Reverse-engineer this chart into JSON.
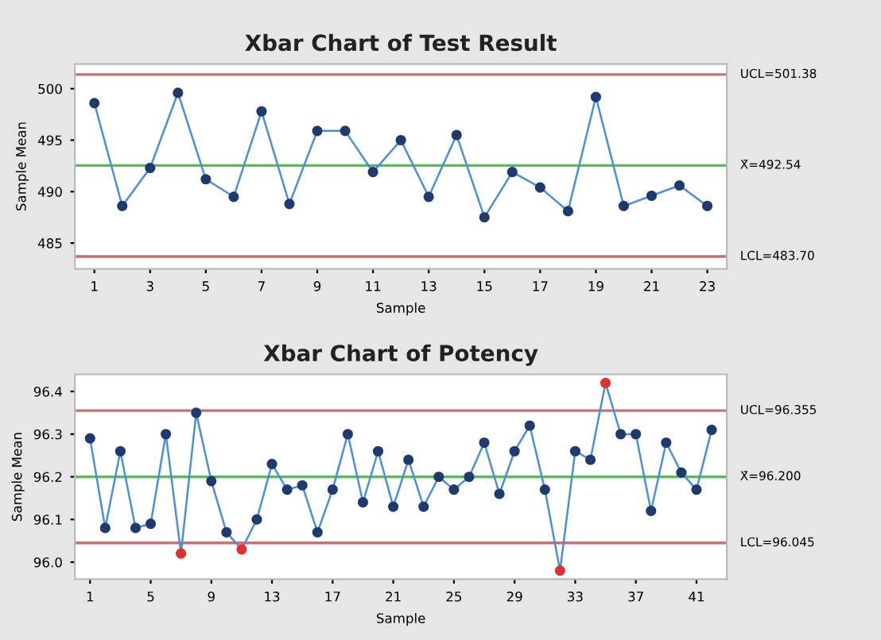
{
  "chart_data": [
    {
      "type": "line",
      "title": "Xbar Chart of Test Result",
      "xlabel": "Sample",
      "ylabel": "Sample Mean",
      "x": [
        1,
        2,
        3,
        4,
        5,
        6,
        7,
        8,
        9,
        10,
        11,
        12,
        13,
        14,
        15,
        16,
        17,
        18,
        19,
        20,
        21,
        22,
        23
      ],
      "series": [
        {
          "color": "#4a90d9",
          "colors": [
            "#1f3a6e",
            "#1f3a6e",
            "#1f3a6e",
            "#1f3a6e",
            "#1f3a6e",
            "#1f3a6e",
            "#1f3a6e",
            "#1f3a6e",
            "#1f3a6e",
            "#1f3a6e",
            "#1f3a6e",
            "#1f3a6e",
            "#1f3a6e",
            "#1f3a6e",
            "#1f3a6e",
            "#1f3a6e",
            "#1f3a6e",
            "#1f3a6e",
            "#1f3a6e",
            "#1f3a6e",
            "#1f3a6e",
            "#1f3a6e",
            "#1f3a6e"
          ],
          "values": [
            498.6,
            488.6,
            492.3,
            499.6,
            491.2,
            489.5,
            497.8,
            488.8,
            495.9,
            495.9,
            491.9,
            495.0,
            489.5,
            495.5,
            487.5,
            491.9,
            490.4,
            488.1,
            499.2,
            488.6,
            489.6,
            490.6,
            488.6
          ]
        }
      ],
      "marker": "circle",
      "line_style": "solid",
      "xlim": [
        0.3,
        23.7
      ],
      "xticks": [
        1,
        3,
        5,
        7,
        9,
        11,
        13,
        15,
        17,
        19,
        21,
        23
      ],
      "ylim": [
        482.5,
        502.4
      ],
      "yticks": [
        485,
        490,
        495,
        500
      ],
      "ref_lines": [
        {
          "axis": "y",
          "value": 501.38,
          "label": "UCL=501.38",
          "color": "#c87070"
        },
        {
          "axis": "y",
          "value": 492.54,
          "label": "X̄=492.54",
          "color": "#5cb85c"
        },
        {
          "axis": "y",
          "value": 483.7,
          "label": "LCL=483.70",
          "color": "#c87070"
        }
      ],
      "grid": false,
      "legend": false
    },
    {
      "type": "line",
      "title": "Xbar Chart of Potency",
      "xlabel": "Sample",
      "ylabel": "Sample Mean",
      "x": [
        1,
        2,
        3,
        4,
        5,
        6,
        7,
        8,
        9,
        10,
        11,
        12,
        13,
        14,
        15,
        16,
        17,
        18,
        19,
        20,
        21,
        22,
        23,
        24,
        25,
        26,
        27,
        28,
        29,
        30,
        31,
        32,
        33,
        34,
        35,
        36,
        37,
        38,
        39,
        40,
        41,
        42
      ],
      "series": [
        {
          "color": "#4a90d9",
          "colors": [
            "#1f3a6e",
            "#1f3a6e",
            "#1f3a6e",
            "#1f3a6e",
            "#1f3a6e",
            "#1f3a6e",
            "#e03030",
            "#1f3a6e",
            "#1f3a6e",
            "#1f3a6e",
            "#e03030",
            "#1f3a6e",
            "#1f3a6e",
            "#1f3a6e",
            "#1f3a6e",
            "#1f3a6e",
            "#1f3a6e",
            "#1f3a6e",
            "#1f3a6e",
            "#1f3a6e",
            "#1f3a6e",
            "#1f3a6e",
            "#1f3a6e",
            "#1f3a6e",
            "#1f3a6e",
            "#1f3a6e",
            "#1f3a6e",
            "#1f3a6e",
            "#1f3a6e",
            "#1f3a6e",
            "#1f3a6e",
            "#e03030",
            "#1f3a6e",
            "#1f3a6e",
            "#e03030",
            "#1f3a6e",
            "#1f3a6e",
            "#1f3a6e",
            "#1f3a6e",
            "#1f3a6e",
            "#1f3a6e",
            "#1f3a6e"
          ],
          "values": [
            96.29,
            96.08,
            96.26,
            96.08,
            96.09,
            96.3,
            96.02,
            96.35,
            96.19,
            96.07,
            96.03,
            96.1,
            96.23,
            96.17,
            96.18,
            96.07,
            96.17,
            96.3,
            96.14,
            96.26,
            96.13,
            96.24,
            96.13,
            96.2,
            96.17,
            96.2,
            96.28,
            96.16,
            96.26,
            96.32,
            96.17,
            95.98,
            96.26,
            96.24,
            96.42,
            96.3,
            96.3,
            96.12,
            96.28,
            96.21,
            96.17,
            96.31
          ]
        }
      ],
      "marker": "circle",
      "line_style": "solid",
      "xlim": [
        0.0,
        43.0
      ],
      "xticks": [
        1,
        5,
        9,
        13,
        17,
        21,
        25,
        29,
        33,
        37,
        41
      ],
      "ylim": [
        95.96,
        96.44
      ],
      "yticks": [
        {
          "value": 96.0,
          "label": "96.0"
        },
        96.1,
        96.2,
        96.3,
        96.4
      ],
      "ref_lines": [
        {
          "axis": "y",
          "value": 96.355,
          "label": "UCL=96.355",
          "color": "#c87070"
        },
        {
          "axis": "y",
          "value": 96.2,
          "label": "X̄=96.200",
          "color": "#5cb85c"
        },
        {
          "axis": "y",
          "value": 96.045,
          "label": "LCL=96.045",
          "color": "#c87070"
        }
      ],
      "grid": false,
      "legend": false
    }
  ]
}
